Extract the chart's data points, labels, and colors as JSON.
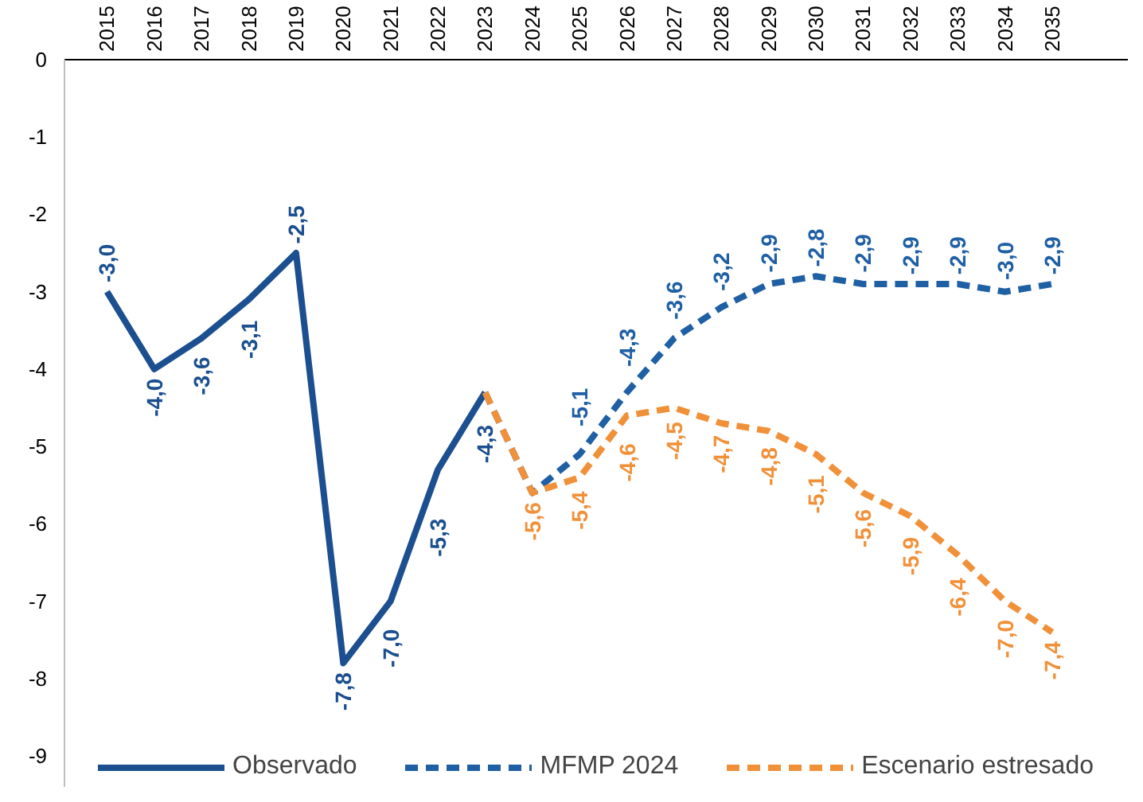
{
  "chart_data": {
    "type": "line",
    "categories": [
      "2015",
      "2016",
      "2017",
      "2018",
      "2019",
      "2020",
      "2021",
      "2022",
      "2023",
      "2024",
      "2025",
      "2026",
      "2027",
      "2028",
      "2029",
      "2030",
      "2031",
      "2032",
      "2033",
      "2034",
      "2035"
    ],
    "ylim": [
      -9.4,
      0
    ],
    "yticks": [
      0,
      -1,
      -2,
      -3,
      -4,
      -5,
      -6,
      -7,
      -8,
      -9
    ],
    "grid": false,
    "legend": "bottom",
    "marker": "none",
    "series": [
      {
        "name": "Observado",
        "color": "#1b4f8f",
        "line_style": "solid",
        "values": [
          -3.0,
          -4.0,
          -3.6,
          -3.1,
          -2.5,
          -7.8,
          -7.0,
          -5.3,
          -4.3,
          null,
          null,
          null,
          null,
          null,
          null,
          null,
          null,
          null,
          null,
          null,
          null
        ],
        "value_labels": [
          "-3,0",
          "-4,0",
          "-3,6",
          "-3,1",
          "-2,5",
          "-7,8",
          "-7,0",
          "-5,3",
          "-4,3",
          null,
          null,
          null,
          null,
          null,
          null,
          null,
          null,
          null,
          null,
          null,
          null
        ]
      },
      {
        "name": "MFMP 2024",
        "color": "#1f5fa3",
        "line_style": "dashed",
        "values": [
          null,
          null,
          null,
          null,
          null,
          null,
          null,
          null,
          -4.3,
          -5.6,
          -5.1,
          -4.3,
          -3.6,
          -3.2,
          -2.9,
          -2.8,
          -2.9,
          -2.9,
          -2.9,
          -3.0,
          -2.9
        ],
        "value_labels": [
          null,
          null,
          null,
          null,
          null,
          null,
          null,
          null,
          null,
          null,
          "-5,1",
          "-4,3",
          "-3,6",
          "-3,2",
          "-2,9",
          "-2,8",
          "-2,9",
          "-2,9",
          "-2,9",
          "-3,0",
          "-2,9"
        ]
      },
      {
        "name": "Escenario estresado",
        "color": "#f0913a",
        "line_style": "dashed",
        "values": [
          null,
          null,
          null,
          null,
          null,
          null,
          null,
          null,
          -4.3,
          -5.6,
          -5.4,
          -4.6,
          -4.5,
          -4.7,
          -4.8,
          -5.1,
          -5.6,
          -5.9,
          -6.4,
          -7.0,
          -7.4
        ],
        "value_labels": [
          null,
          null,
          null,
          null,
          null,
          null,
          null,
          null,
          null,
          "-5,6",
          "-5,4",
          "-4,6",
          "-4,5",
          "-4,7",
          "-4,8",
          "-5,1",
          "-5,6",
          "-5,9",
          "-6,4",
          "-7,0",
          "-7,4"
        ]
      }
    ]
  }
}
